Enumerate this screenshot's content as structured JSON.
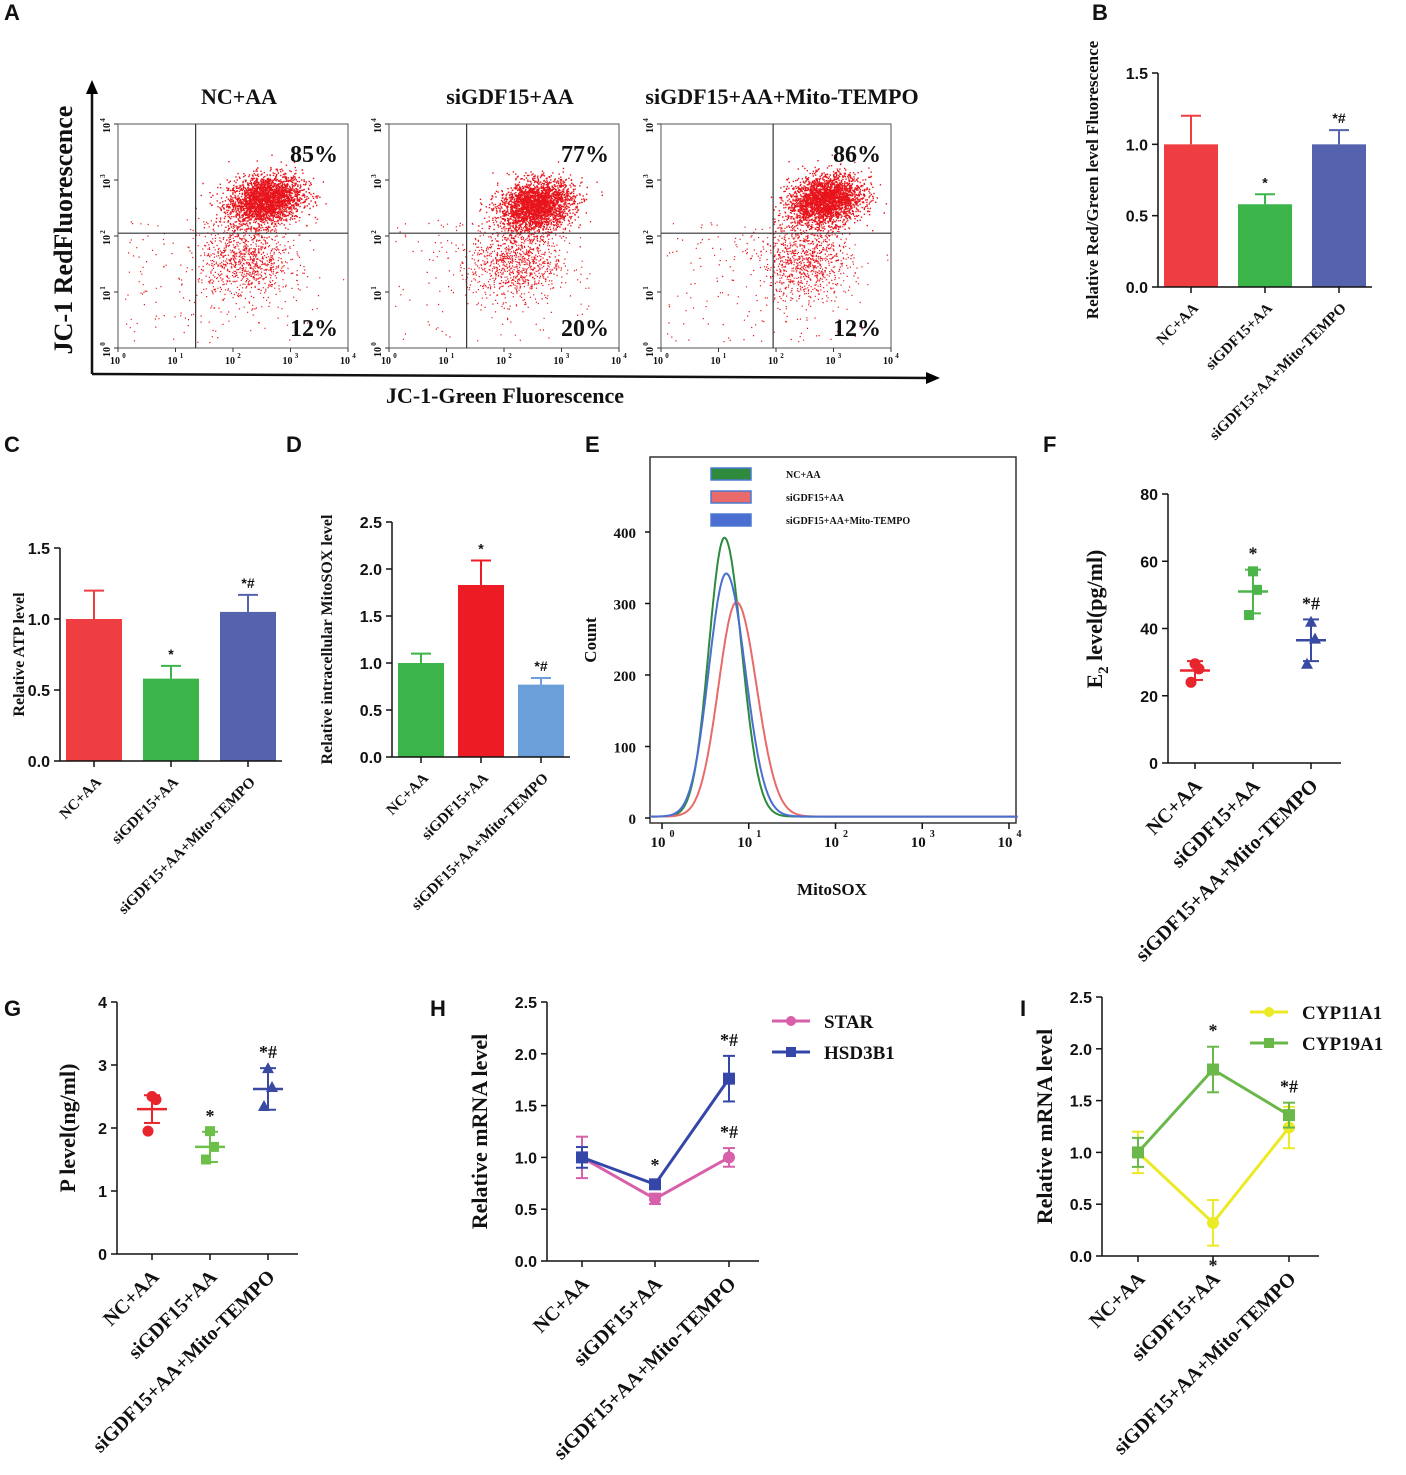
{
  "chart_data": [
    {
      "panel": "A",
      "type": "scatter",
      "title": "",
      "xlabel": "JC-1-Green Fluorescence",
      "ylabel": "JC-1 RedFluorescence",
      "axis_scale": "log",
      "ticks": [
        "10",
        "10",
        "10",
        "10",
        "10"
      ],
      "tick_exponents": [
        "0",
        "1",
        "2",
        "3",
        "4"
      ],
      "plots": [
        {
          "name": "NC+AA",
          "upper_right": "85%",
          "lower_right": "12%",
          "gate_x": 1.35,
          "gate_y": 2.05,
          "center_x": 2.55,
          "center_y": 2.65
        },
        {
          "name": "siGDF15+AA",
          "upper_right": "77%",
          "lower_right": "20%",
          "gate_x": 1.35,
          "gate_y": 2.05,
          "center_x": 2.55,
          "center_y": 2.55
        },
        {
          "name": "siGDF15+AA+Mito-TEMPO",
          "upper_right": "86%",
          "lower_right": "12%",
          "gate_x": 1.95,
          "gate_y": 2.05,
          "center_x": 2.85,
          "center_y": 2.65
        }
      ]
    },
    {
      "panel": "B",
      "type": "bar",
      "ylabel": "Relative Red/Green level Fluorescence",
      "ylim": [
        0,
        1.5
      ],
      "yticks": [
        "0.0",
        "0.5",
        "1.0",
        "1.5"
      ],
      "categories": [
        "NC+AA",
        "siGDF15+AA",
        "siGDF15+AA+Mito-TEMPO"
      ],
      "values": [
        1.0,
        0.58,
        1.0
      ],
      "errors": [
        0.2,
        0.07,
        0.1
      ],
      "marks": [
        "",
        "*",
        "*#"
      ],
      "colors": [
        "#ef3e42",
        "#3bb54a",
        "#5563ae"
      ]
    },
    {
      "panel": "C",
      "type": "bar",
      "ylabel": "Relative ATP level",
      "ylim": [
        0,
        1.5
      ],
      "yticks": [
        "0.0",
        "0.5",
        "1.0",
        "1.5"
      ],
      "categories": [
        "NC+AA",
        "siGDF15+AA",
        "siGDF15+AA+Mito-TEMPO"
      ],
      "values": [
        1.0,
        0.58,
        1.05
      ],
      "errors": [
        0.2,
        0.09,
        0.12
      ],
      "marks": [
        "",
        "*",
        "*#"
      ],
      "colors": [
        "#ef3e42",
        "#3bb54a",
        "#5563ae"
      ]
    },
    {
      "panel": "D",
      "type": "bar",
      "ylabel": "Relative intracellular MitoSOX level",
      "ylim": [
        0,
        2.5
      ],
      "yticks": [
        "0.0",
        "0.5",
        "1.0",
        "1.5",
        "2.0",
        "2.5"
      ],
      "categories": [
        "NC+AA",
        "siGDF15+AA",
        "siGDF15+AA+Mito-TEMPO"
      ],
      "values": [
        1.0,
        1.83,
        0.77
      ],
      "errors": [
        0.1,
        0.26,
        0.07
      ],
      "marks": [
        "",
        "*",
        "*#"
      ],
      "colors": [
        "#3bb54a",
        "#ed1c24",
        "#6a9fd9"
      ]
    },
    {
      "panel": "E",
      "type": "line",
      "xlabel": "MitoSOX",
      "ylabel": "Count",
      "ylim": [
        0,
        450
      ],
      "yticks": [
        "0",
        "100",
        "200",
        "300",
        "400"
      ],
      "xticks": [
        "10",
        "10",
        "10",
        "10",
        "10"
      ],
      "xtick_exponents": [
        "0",
        "1",
        "2",
        "3",
        "4"
      ],
      "series": [
        {
          "name": "NC+AA",
          "color": "#2e8b3e",
          "peak_log_x": 0.72,
          "peak": 390,
          "width": 0.18
        },
        {
          "name": "siGDF15+AA",
          "color": "#e96a6a",
          "peak_log_x": 0.86,
          "peak": 300,
          "width": 0.21
        },
        {
          "name": "siGDF15+AA+Mito-TEMPO",
          "color": "#4a6fd1",
          "peak_log_x": 0.74,
          "peak": 340,
          "width": 0.2
        }
      ]
    },
    {
      "panel": "F",
      "type": "scatter",
      "ylabel": "E",
      "ylabel_sub": "2",
      "ylabel_rest": " level(pg/ml)",
      "ylim": [
        0,
        80
      ],
      "yticks": [
        "0",
        "20",
        "40",
        "60",
        "80"
      ],
      "categories": [
        "NC+AA",
        "siGDF15+AA",
        "siGDF15+AA+Mito-TEMPO"
      ],
      "points": [
        [
          24,
          28,
          29.5
        ],
        [
          44,
          51.5,
          57
        ],
        [
          29.5,
          37,
          42
        ]
      ],
      "mean": [
        27.5,
        51,
        36.5
      ],
      "sd": [
        2.8,
        6.5,
        6.2
      ],
      "marks": [
        "",
        "*",
        "*#"
      ],
      "colors": [
        "#e8242c",
        "#4cb54a",
        "#3a4aa2"
      ],
      "shapes": [
        "circle",
        "square",
        "triangle"
      ]
    },
    {
      "panel": "G",
      "type": "scatter",
      "ylabel": "P level(ng/ml)",
      "ylim": [
        0,
        4
      ],
      "yticks": [
        "0",
        "1",
        "2",
        "3",
        "4"
      ],
      "categories": [
        "NC+AA",
        "siGDF15+AA",
        "siGDF15+AA+Mito-TEMPO"
      ],
      "points": [
        [
          1.95,
          2.45,
          2.5
        ],
        [
          1.5,
          1.7,
          1.95
        ],
        [
          2.35,
          2.65,
          2.95
        ]
      ],
      "mean": [
        2.3,
        1.7,
        2.62
      ],
      "sd": [
        0.22,
        0.24,
        0.33
      ],
      "marks": [
        "",
        "*",
        "*#"
      ],
      "colors": [
        "#e8242c",
        "#6cc04a",
        "#3a4aa2"
      ],
      "shapes": [
        "circle",
        "square",
        "triangle"
      ]
    },
    {
      "panel": "H",
      "type": "line",
      "ylabel": "Relative mRNA level",
      "ylim": [
        0,
        2.5
      ],
      "yticks": [
        "0.0",
        "0.5",
        "1.0",
        "1.5",
        "2.0",
        "2.5"
      ],
      "categories": [
        "NC+AA",
        "siGDF15+AA",
        "siGDF15+AA+Mito-TEMPO"
      ],
      "series": [
        {
          "name": "STAR",
          "values": [
            1.0,
            0.6,
            1.0
          ],
          "errors": [
            0.2,
            0.05,
            0.09
          ],
          "color": "#d85fa9",
          "marker": "circle",
          "marks": [
            "",
            "",
            "*#"
          ]
        },
        {
          "name": "HSD3B1",
          "values": [
            1.0,
            0.74,
            1.76
          ],
          "errors": [
            0.1,
            0.03,
            0.22
          ],
          "color": "#3447a8",
          "marker": "square",
          "marks": [
            "",
            "*",
            "*#"
          ]
        }
      ]
    },
    {
      "panel": "I",
      "type": "line",
      "ylabel": "Relative mRNA level",
      "ylim": [
        0,
        2.5
      ],
      "yticks": [
        "0.0",
        "0.5",
        "1.0",
        "1.5",
        "2.0",
        "2.5"
      ],
      "categories": [
        "NC+AA",
        "siGDF15+AA",
        "siGDF15+AA+Mito-TEMPO"
      ],
      "series": [
        {
          "name": "CYP11A1",
          "values": [
            1.0,
            0.32,
            1.24
          ],
          "errors": [
            0.2,
            0.22,
            0.2
          ],
          "color": "#ecea24",
          "marker": "circle",
          "marks": [
            "",
            "*",
            ""
          ]
        },
        {
          "name": "CYP19A1",
          "values": [
            1.0,
            1.8,
            1.36
          ],
          "errors": [
            0.14,
            0.22,
            0.12
          ],
          "color": "#6ab84a",
          "marker": "square",
          "marks": [
            "",
            "*",
            "*#"
          ]
        }
      ]
    }
  ]
}
